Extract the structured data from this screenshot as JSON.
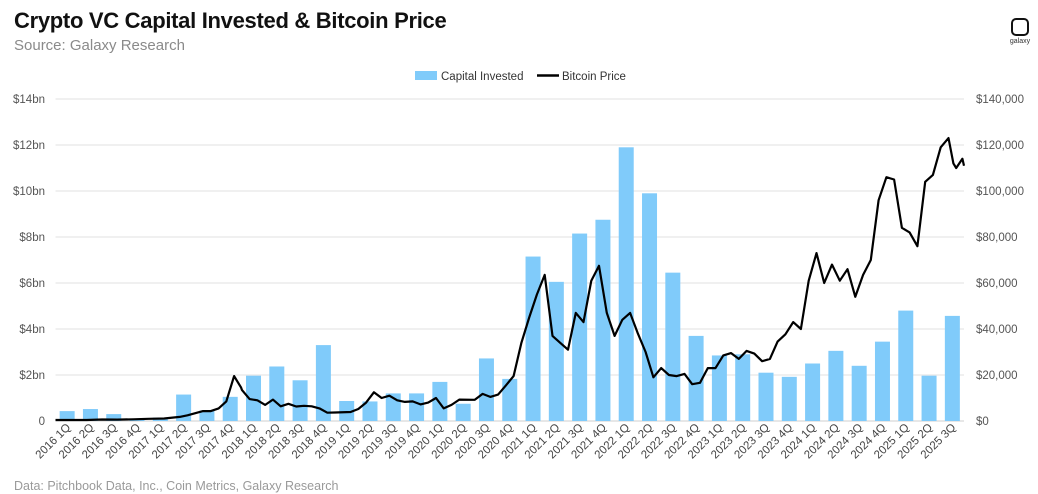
{
  "title": "Crypto VC Capital Invested & Bitcoin Price",
  "subtitle": "Source: Galaxy Research",
  "footer": "Data: Pitchbook Data, Inc., Coin Metrics, Galaxy Research",
  "logo": {
    "text": "galaxy"
  },
  "chart_data": {
    "type": "bar+line",
    "title": "Crypto VC Capital Invested & Bitcoin Price",
    "legend": {
      "placement": "top-center",
      "entries": [
        "Capital Invested",
        "Bitcoin Price"
      ]
    },
    "colors": {
      "bars": "#80cbfa",
      "line": "#000000",
      "grid": "#e2e2e2"
    },
    "grid": true,
    "categories": [
      "2016 1Q",
      "2016 2Q",
      "2016 3Q",
      "2016 4Q",
      "2017 1Q",
      "2017 2Q",
      "2017 3Q",
      "2017 4Q",
      "2018 1Q",
      "2018 2Q",
      "2018 3Q",
      "2018 4Q",
      "2019 1Q",
      "2019 2Q",
      "2019 3Q",
      "2019 4Q",
      "2020 1Q",
      "2020 2Q",
      "2020 3Q",
      "2020 4Q",
      "2021 1Q",
      "2021 2Q",
      "2021 3Q",
      "2021 4Q",
      "2022 1Q",
      "2022 2Q",
      "2022 3Q",
      "2022 4Q",
      "2023 1Q",
      "2023 2Q",
      "2023 3Q",
      "2023 4Q",
      "2024 1Q",
      "2024 2Q",
      "2024 3Q",
      "2024 4Q",
      "2025 1Q",
      "2025 2Q",
      "2025 3Q"
    ],
    "left_axis": {
      "unit": "USD billions",
      "ylim": [
        0,
        14
      ],
      "ticks": [
        "0",
        "$2bn",
        "$4bn",
        "$6bn",
        "$8bn",
        "$10bn",
        "$12bn",
        "$14bn"
      ]
    },
    "right_axis": {
      "unit": "USD",
      "ylim": [
        0,
        140000
      ],
      "ticks": [
        "$0",
        "$20,000",
        "$40,000",
        "$60,000",
        "$80,000",
        "$100,000",
        "$120,000",
        "$140,000"
      ]
    },
    "series": [
      {
        "name": "Capital Invested",
        "type": "bar",
        "axis": "left",
        "values": [
          0.43,
          0.52,
          0.3,
          0.05,
          0.15,
          1.15,
          0.45,
          1.05,
          1.97,
          2.37,
          1.77,
          3.3,
          0.87,
          0.85,
          1.2,
          1.2,
          1.7,
          0.75,
          2.72,
          1.83,
          7.15,
          6.05,
          8.15,
          8.75,
          11.9,
          9.9,
          6.45,
          3.7,
          2.85,
          2.9,
          2.1,
          1.92,
          2.5,
          3.05,
          2.4,
          3.45,
          4.8,
          1.97,
          4.57
        ]
      },
      {
        "name": "Bitcoin Price",
        "type": "line",
        "axis": "right",
        "points": [
          [
            "2016-01",
            430
          ],
          [
            "2016-03",
            415
          ],
          [
            "2016-05",
            450
          ],
          [
            "2016-07",
            660
          ],
          [
            "2016-09",
            600
          ],
          [
            "2016-11",
            720
          ],
          [
            "2017-01",
            970
          ],
          [
            "2017-03",
            1100
          ],
          [
            "2017-05",
            1800
          ],
          [
            "2017-06",
            2500
          ],
          [
            "2017-08",
            4300
          ],
          [
            "2017-09",
            4300
          ],
          [
            "2017-10",
            5500
          ],
          [
            "2017-11",
            8500
          ],
          [
            "2017-12",
            19500
          ],
          [
            "2017-12-28",
            14500
          ],
          [
            "2018-01",
            13500
          ],
          [
            "2018-02",
            9500
          ],
          [
            "2018-03",
            9000
          ],
          [
            "2018-04",
            7000
          ],
          [
            "2018-05",
            9300
          ],
          [
            "2018-06",
            6400
          ],
          [
            "2018-07",
            7500
          ],
          [
            "2018-08",
            6300
          ],
          [
            "2018-09",
            6600
          ],
          [
            "2018-10",
            6400
          ],
          [
            "2018-11",
            5500
          ],
          [
            "2018-12",
            3600
          ],
          [
            "2019-01",
            3700
          ],
          [
            "2019-03",
            3900
          ],
          [
            "2019-04",
            5200
          ],
          [
            "2019-05",
            8000
          ],
          [
            "2019-06",
            12500
          ],
          [
            "2019-07",
            10000
          ],
          [
            "2019-08",
            11000
          ],
          [
            "2019-09",
            9000
          ],
          [
            "2019-10",
            8300
          ],
          [
            "2019-11",
            8500
          ],
          [
            "2019-12",
            7200
          ],
          [
            "2020-01",
            8000
          ],
          [
            "2020-02",
            10000
          ],
          [
            "2020-03",
            5500
          ],
          [
            "2020-04",
            7000
          ],
          [
            "2020-05",
            9300
          ],
          [
            "2020-07",
            9200
          ],
          [
            "2020-08",
            11800
          ],
          [
            "2020-09",
            10500
          ],
          [
            "2020-10",
            11500
          ],
          [
            "2020-11",
            15500
          ],
          [
            "2020-12",
            19500
          ],
          [
            "2021-01",
            34000
          ],
          [
            "2021-02",
            45000
          ],
          [
            "2021-03",
            55000
          ],
          [
            "2021-04",
            63500
          ],
          [
            "2021-05",
            37000
          ],
          [
            "2021-06",
            34000
          ],
          [
            "2021-07",
            31000
          ],
          [
            "2021-08",
            47000
          ],
          [
            "2021-09",
            43000
          ],
          [
            "2021-10",
            61000
          ],
          [
            "2021-11",
            67500
          ],
          [
            "2021-12",
            47000
          ],
          [
            "2022-01",
            37000
          ],
          [
            "2022-02",
            44000
          ],
          [
            "2022-03",
            47000
          ],
          [
            "2022-04",
            38000
          ],
          [
            "2022-05",
            30000
          ],
          [
            "2022-06",
            19000
          ],
          [
            "2022-07",
            23000
          ],
          [
            "2022-08",
            20000
          ],
          [
            "2022-09",
            19500
          ],
          [
            "2022-10",
            20500
          ],
          [
            "2022-11",
            16000
          ],
          [
            "2022-12",
            16600
          ],
          [
            "2023-01",
            23000
          ],
          [
            "2023-02",
            23000
          ],
          [
            "2023-03",
            28500
          ],
          [
            "2023-04",
            29500
          ],
          [
            "2023-05",
            27000
          ],
          [
            "2023-06",
            30500
          ],
          [
            "2023-07",
            29300
          ],
          [
            "2023-08",
            26000
          ],
          [
            "2023-09",
            27000
          ],
          [
            "2023-10",
            34500
          ],
          [
            "2023-11",
            37700
          ],
          [
            "2023-12",
            43000
          ],
          [
            "2024-01",
            40000
          ],
          [
            "2024-02",
            61000
          ],
          [
            "2024-03",
            73000
          ],
          [
            "2024-04",
            60000
          ],
          [
            "2024-05",
            68000
          ],
          [
            "2024-06",
            61000
          ],
          [
            "2024-07",
            66000
          ],
          [
            "2024-08",
            54000
          ],
          [
            "2024-09",
            63500
          ],
          [
            "2024-10",
            70000
          ],
          [
            "2024-11",
            96000
          ],
          [
            "2024-12",
            106000
          ],
          [
            "2025-01",
            105000
          ],
          [
            "2025-02",
            84000
          ],
          [
            "2025-03",
            82000
          ],
          [
            "2025-04",
            76000
          ],
          [
            "2025-05",
            104000
          ],
          [
            "2025-06",
            107000
          ],
          [
            "2025-07",
            119000
          ],
          [
            "2025-08",
            123000
          ],
          [
            "2025-08-20",
            112000
          ],
          [
            "2025-09",
            110000
          ],
          [
            "2025-09-25",
            114000
          ],
          [
            "2025-10",
            111000
          ]
        ]
      }
    ]
  }
}
